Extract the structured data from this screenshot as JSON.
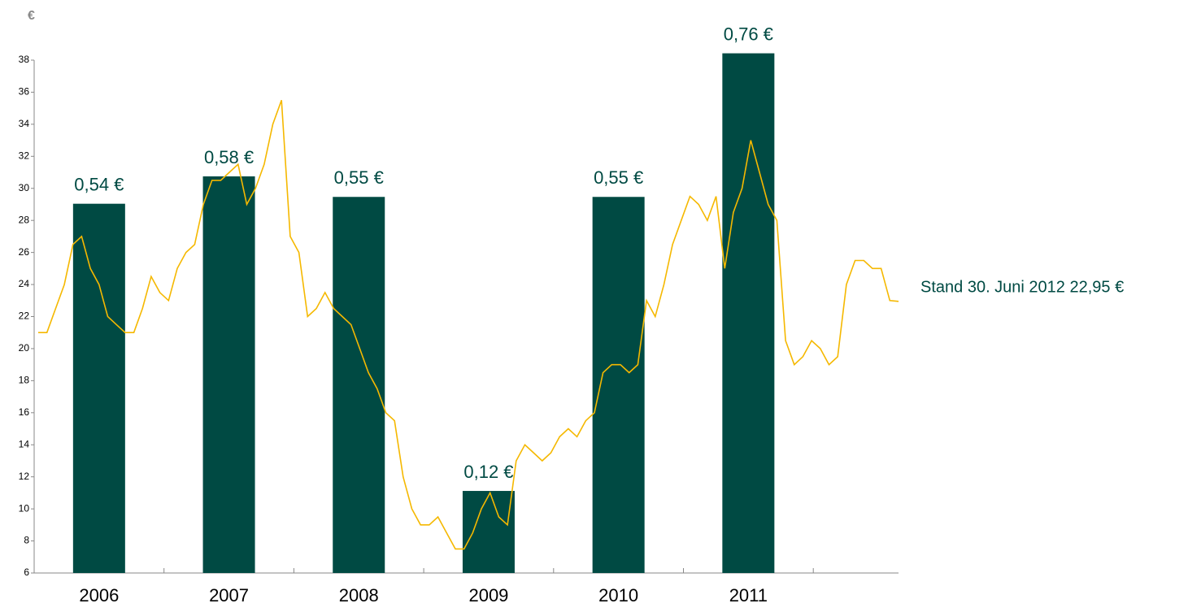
{
  "chart_data": {
    "type": "bar",
    "y_label": "€",
    "categories": [
      "2006",
      "2007",
      "2008",
      "2009",
      "2010",
      "2011"
    ],
    "series": [
      {
        "color": "#004a43",
        "axis": "y2",
        "values": [
          0.54,
          0.58,
          0.55,
          0.12,
          0.55,
          0.76
        ],
        "value_labels": [
          "0,54 €",
          "0,58 €",
          "0,55 €",
          "0,12 €",
          "0,55 €",
          "0,76 €"
        ]
      }
    ],
    "line": {
      "color": "#f5b800",
      "values": [
        21,
        21,
        22.5,
        24,
        26.5,
        27,
        25,
        24,
        22,
        21.5,
        21,
        21,
        22.5,
        24.5,
        23.5,
        23,
        25,
        26,
        26.5,
        29,
        30.5,
        30.5,
        31,
        31.5,
        29,
        30,
        31.5,
        34,
        35.5,
        27,
        26,
        22,
        22.5,
        23.5,
        22.5,
        22,
        21.5,
        20,
        18.5,
        17.5,
        16,
        15.5,
        12,
        10,
        9,
        9,
        9.5,
        8.5,
        7.5,
        7.5,
        8.5,
        10,
        11,
        9.5,
        9,
        13,
        14,
        13.5,
        13,
        13.5,
        14.5,
        15,
        14.5,
        15.5,
        16,
        18.5,
        19,
        19,
        18.5,
        19,
        23,
        22,
        24,
        26.5,
        28,
        29.5,
        29,
        28,
        29.5,
        25,
        28.5,
        30,
        33,
        31,
        29,
        28,
        20.5,
        19,
        19.5,
        20.5,
        20,
        19,
        19.5,
        24,
        25.5,
        25.5,
        25,
        25,
        23,
        22.95
      ]
    },
    "ylim": [
      6,
      38
    ],
    "yticks": [
      6,
      8,
      10,
      12,
      14,
      16,
      18,
      20,
      22,
      24,
      26,
      28,
      30,
      32,
      34,
      36,
      38
    ],
    "y2lim": [
      0,
      0.75
    ],
    "annotation": "Stand 30. Juni 2012  22,95 €"
  }
}
